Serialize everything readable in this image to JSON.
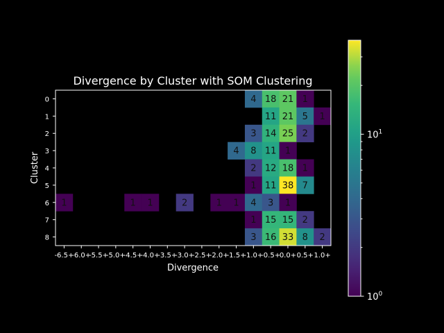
{
  "chart_data": {
    "type": "heatmap",
    "title": "Divergence by Cluster with SOM Clustering",
    "xlabel": "Divergence",
    "ylabel": "Cluster",
    "x_categories": [
      "-6.5+",
      "-6.0+",
      "-5.5+",
      "-5.0+",
      "-4.5+",
      "-4.0+",
      "-3.5+",
      "-3.0+",
      "-2.5+",
      "-2.0+",
      "-1.5+",
      "-1.0+",
      "-0.5+",
      "0.0+",
      "0.5+",
      "1.0+"
    ],
    "y_categories": [
      "0",
      "1",
      "2",
      "3",
      "4",
      "5",
      "6",
      "7",
      "8"
    ],
    "values": [
      [
        null,
        null,
        null,
        null,
        null,
        null,
        null,
        null,
        null,
        null,
        null,
        4,
        18,
        21,
        1,
        null
      ],
      [
        null,
        null,
        null,
        null,
        null,
        null,
        null,
        null,
        null,
        null,
        null,
        null,
        11,
        21,
        5,
        1
      ],
      [
        null,
        null,
        null,
        null,
        null,
        null,
        null,
        null,
        null,
        null,
        null,
        3,
        14,
        25,
        2,
        null
      ],
      [
        null,
        null,
        null,
        null,
        null,
        null,
        null,
        null,
        null,
        null,
        4,
        8,
        11,
        1,
        null,
        null
      ],
      [
        null,
        null,
        null,
        null,
        null,
        null,
        null,
        null,
        null,
        null,
        null,
        2,
        12,
        18,
        1,
        null
      ],
      [
        null,
        null,
        null,
        null,
        null,
        null,
        null,
        null,
        null,
        null,
        null,
        1,
        11,
        38,
        7,
        null
      ],
      [
        1,
        null,
        null,
        null,
        1,
        1,
        null,
        2,
        null,
        1,
        1,
        4,
        3,
        1,
        null,
        null
      ],
      [
        null,
        null,
        null,
        null,
        null,
        null,
        null,
        null,
        null,
        null,
        null,
        1,
        15,
        15,
        2,
        null
      ],
      [
        null,
        null,
        null,
        null,
        null,
        null,
        null,
        null,
        null,
        null,
        null,
        3,
        16,
        33,
        8,
        2
      ]
    ],
    "colorbar": {
      "scale": "log",
      "colormap": "viridis",
      "min": 1,
      "max": 38,
      "tick_labels": [
        {
          "base": "10",
          "exp": "0",
          "value": 1
        },
        {
          "base": "10",
          "exp": "1",
          "value": 10
        }
      ]
    },
    "grid": false
  }
}
